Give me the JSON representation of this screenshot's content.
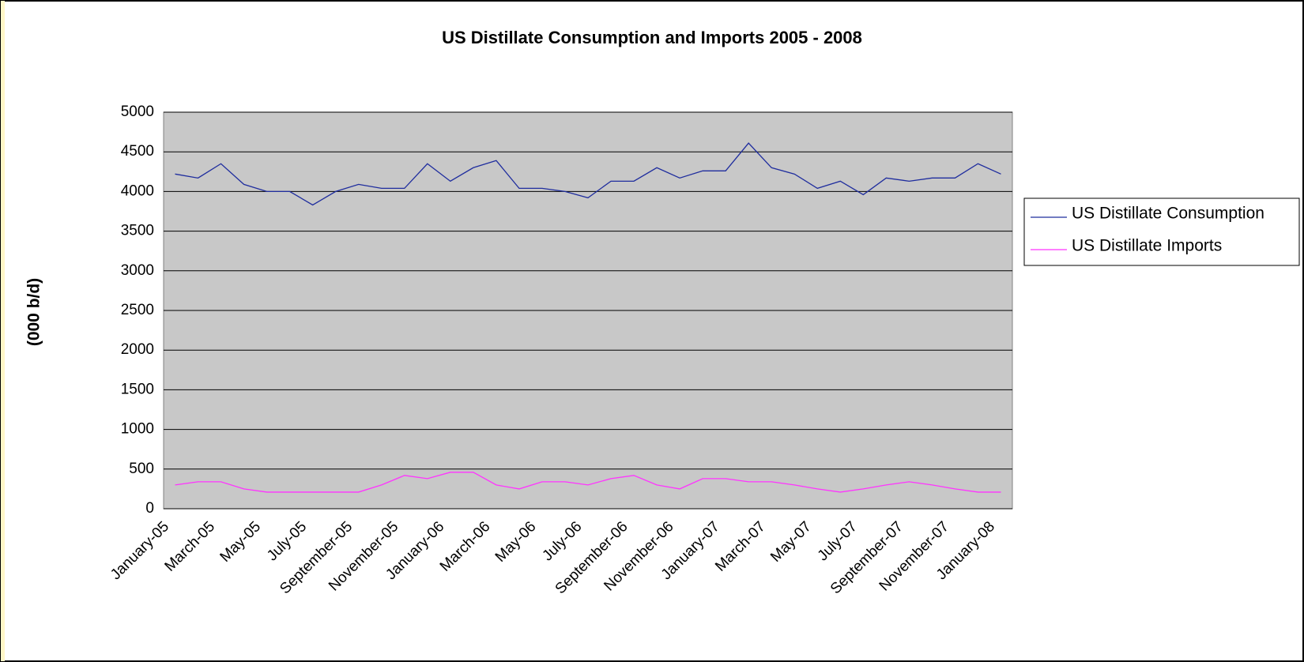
{
  "chart_data": {
    "type": "line",
    "title": "US Distillate Consumption and Imports 2005 - 2008",
    "y_label": "(000 b/d)",
    "categories": [
      "January-05",
      null,
      "March-05",
      null,
      "May-05",
      null,
      "July-05",
      null,
      "September-05",
      null,
      "November-05",
      null,
      "January-06",
      null,
      "March-06",
      null,
      "May-06",
      null,
      "July-06",
      null,
      "September-06",
      null,
      "November-06",
      null,
      "January-07",
      null,
      "March-07",
      null,
      "May-07",
      null,
      "July-07",
      null,
      "September-07",
      null,
      "November-07",
      null,
      "January-08"
    ],
    "series": [
      {
        "name": "US Distillate Consumption",
        "color": "#1f2d9e",
        "values": [
          4220,
          4170,
          4350,
          4090,
          4000,
          4000,
          3830,
          4000,
          4090,
          4040,
          4040,
          4350,
          4130,
          4300,
          4390,
          4040,
          4040,
          4000,
          3920,
          4130,
          4130,
          4300,
          4170,
          4260,
          4260,
          4610,
          4300,
          4220,
          4040,
          4130,
          3960,
          4170,
          4130,
          4170,
          4170,
          4350,
          4220
        ]
      },
      {
        "name": "US Distillate Imports",
        "color": "#ff33ff",
        "values": [
          300,
          340,
          340,
          250,
          210,
          210,
          210,
          210,
          210,
          300,
          420,
          380,
          460,
          460,
          300,
          250,
          340,
          340,
          300,
          380,
          420,
          300,
          250,
          380,
          380,
          340,
          340,
          300,
          250,
          210,
          250,
          300,
          340,
          300,
          250,
          210,
          210
        ]
      }
    ],
    "ylim": [
      0,
      5000
    ],
    "yticks": [
      0,
      500,
      1000,
      1500,
      2000,
      2500,
      3000,
      3500,
      4000,
      4500,
      5000
    ],
    "grid": true,
    "legend": "right"
  }
}
